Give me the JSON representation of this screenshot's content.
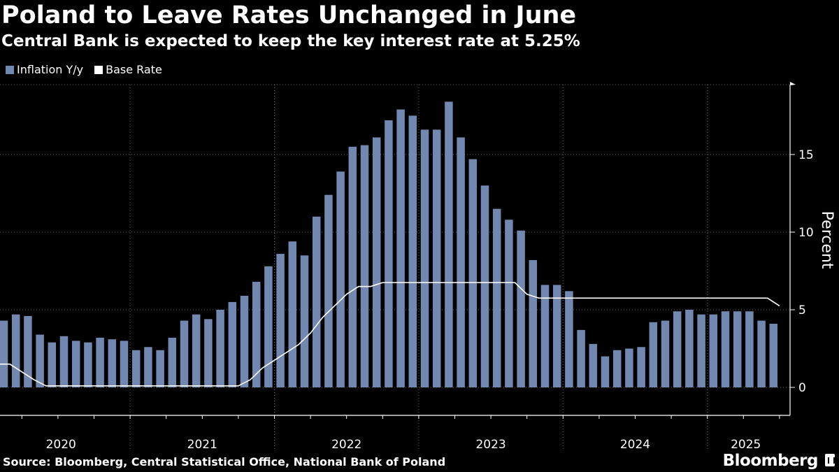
{
  "title": "Poland to Leave Rates Unchanged in June",
  "subtitle": "Central Bank is expected to keep the key interest rate at 5.25%",
  "source": "Source: Bloomberg, Central Statistical Office, National Bank of Poland",
  "brand": "Bloomberg",
  "colors": {
    "bar": "#7288b0",
    "line": "#ffffff",
    "grid": "#666666",
    "background": "#000000"
  },
  "chart_data": {
    "type": "bar",
    "ylabel": "Percent",
    "ylim": [
      -1.8,
      19.5
    ],
    "yticks": [
      0,
      5,
      10,
      15
    ],
    "x_axis_years": [
      "2020",
      "2021",
      "2022",
      "2023",
      "2024",
      "2025"
    ],
    "series": [
      {
        "name": "Inflation Y/y",
        "type": "bar",
        "values": [
          4.3,
          4.7,
          4.6,
          3.4,
          2.9,
          3.3,
          3.0,
          2.9,
          3.2,
          3.1,
          3.0,
          2.4,
          2.6,
          2.4,
          3.2,
          4.3,
          4.7,
          4.4,
          5.0,
          5.5,
          5.9,
          6.8,
          7.8,
          8.6,
          9.4,
          8.5,
          11.0,
          12.4,
          13.9,
          15.5,
          15.6,
          16.1,
          17.2,
          17.9,
          17.5,
          16.6,
          16.6,
          18.4,
          16.1,
          14.7,
          13.0,
          11.5,
          10.8,
          10.1,
          8.2,
          6.6,
          6.6,
          6.2,
          3.7,
          2.8,
          2.0,
          2.4,
          2.5,
          2.6,
          4.2,
          4.3,
          4.9,
          5.0,
          4.7,
          4.7,
          4.9,
          4.9,
          4.9,
          4.3,
          4.1
        ]
      },
      {
        "name": "Base Rate",
        "type": "line",
        "values": [
          1.5,
          1.5,
          1.0,
          0.5,
          0.1,
          0.1,
          0.1,
          0.1,
          0.1,
          0.1,
          0.1,
          0.1,
          0.1,
          0.1,
          0.1,
          0.1,
          0.1,
          0.1,
          0.1,
          0.1,
          0.1,
          0.5,
          1.25,
          1.75,
          2.25,
          2.75,
          3.5,
          4.5,
          5.25,
          6.0,
          6.5,
          6.5,
          6.75,
          6.75,
          6.75,
          6.75,
          6.75,
          6.75,
          6.75,
          6.75,
          6.75,
          6.75,
          6.75,
          6.75,
          6.0,
          5.75,
          5.75,
          5.75,
          5.75,
          5.75,
          5.75,
          5.75,
          5.75,
          5.75,
          5.75,
          5.75,
          5.75,
          5.75,
          5.75,
          5.75,
          5.75,
          5.75,
          5.75,
          5.75,
          5.75,
          5.25
        ]
      }
    ]
  }
}
